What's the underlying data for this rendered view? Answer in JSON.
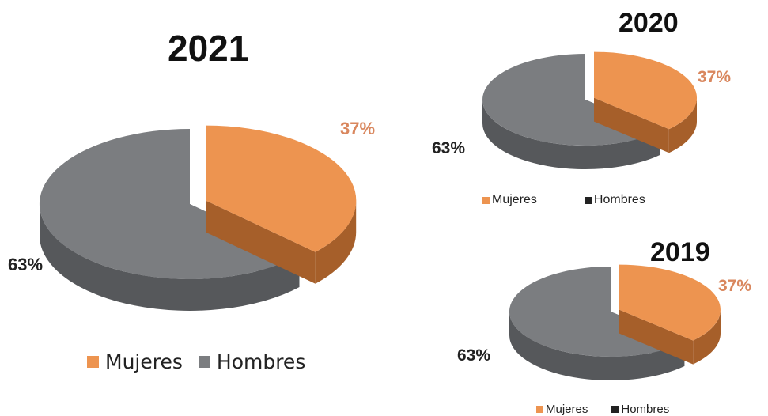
{
  "colors": {
    "mujeres": "#ED9450",
    "mujeres_side": "#A65F2A",
    "hombres": "#7B7D80",
    "hombres_side": "#56585B",
    "mujeres_label": "#D9875E",
    "hombres_label": "#222222"
  },
  "chart_data": [
    {
      "type": "pie",
      "title": "2021",
      "categories": [
        "Mujeres",
        "Hombres"
      ],
      "values": [
        37,
        63
      ],
      "labels": [
        "37%",
        "63%"
      ],
      "legend": [
        "Mujeres",
        "Hombres"
      ],
      "legend_position": "bottom"
    },
    {
      "type": "pie",
      "title": "2020",
      "categories": [
        "Mujeres",
        "Hombres"
      ],
      "values": [
        37,
        63
      ],
      "labels": [
        "37%",
        "63%"
      ],
      "legend": [
        "Mujeres",
        "Hombres"
      ],
      "legend_position": "bottom"
    },
    {
      "type": "pie",
      "title": "2019",
      "categories": [
        "Mujeres",
        "Hombres"
      ],
      "values": [
        37,
        63
      ],
      "labels": [
        "37%",
        "63%"
      ],
      "legend": [
        "Mujeres",
        "Hombres"
      ],
      "legend_position": "bottom"
    }
  ]
}
